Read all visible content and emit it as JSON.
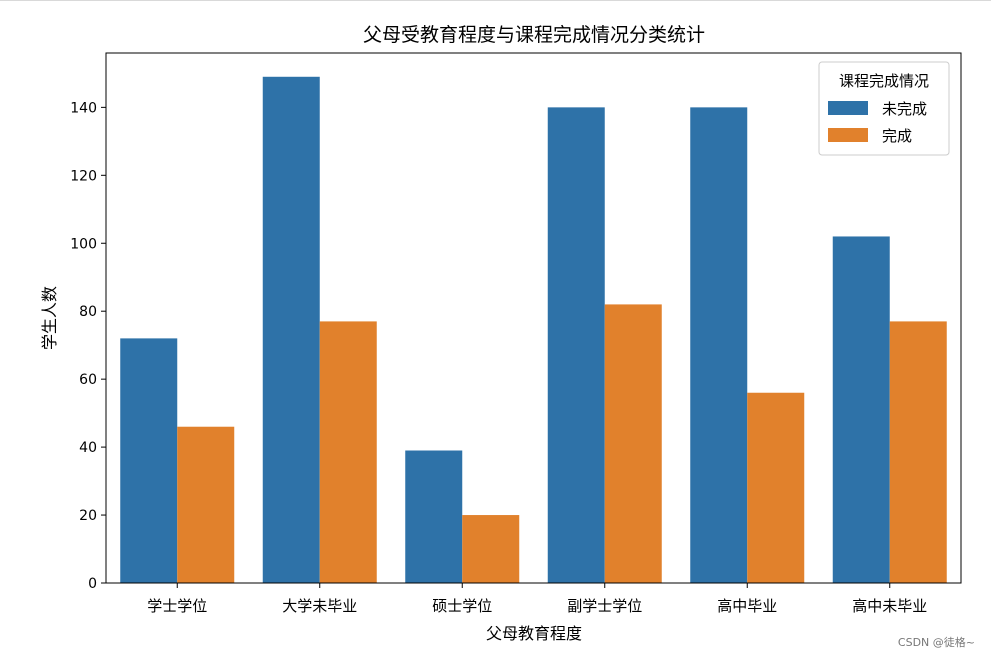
{
  "chart_data": {
    "type": "bar",
    "title": "父母受教育程度与课程完成情况分类统计",
    "xlabel": "父母教育程度",
    "ylabel": "学生人数",
    "categories": [
      "学士学位",
      "大学未毕业",
      "硕士学位",
      "副学士学位",
      "高中毕业",
      "高中未毕业"
    ],
    "series": [
      {
        "name": "未完成",
        "color": "#2e72a8",
        "values": [
          72,
          149,
          39,
          140,
          140,
          102
        ]
      },
      {
        "name": "完成",
        "color": "#e1812c",
        "values": [
          46,
          77,
          20,
          82,
          56,
          77
        ]
      }
    ],
    "ylim": [
      0,
      156
    ],
    "yticks": [
      0,
      20,
      40,
      60,
      80,
      100,
      120,
      140
    ],
    "legend": {
      "title": "课程完成情况",
      "placement": "top-right"
    },
    "grid": false
  },
  "watermark": "CSDN @徒格~"
}
